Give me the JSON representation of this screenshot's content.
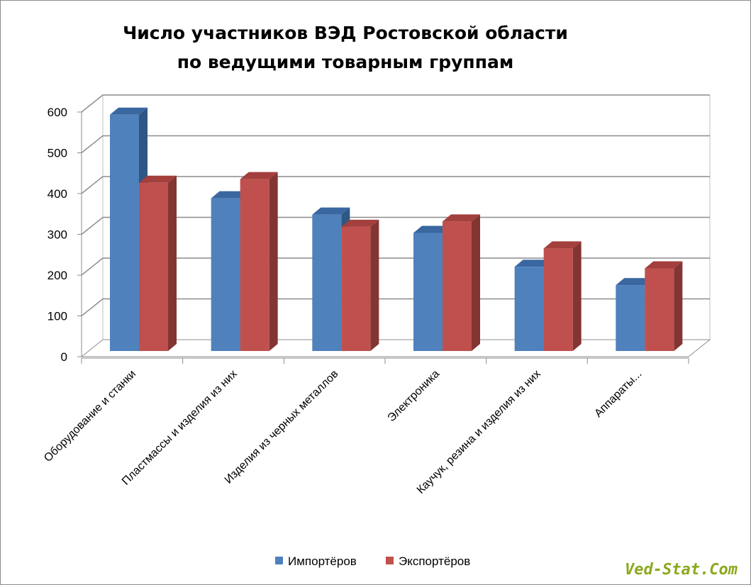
{
  "chart_data": {
    "type": "bar",
    "title_lines": [
      "Число участников  ВЭД Ростовской области",
      "по ведущими товарным группам"
    ],
    "categories": [
      "Оборудование и станки",
      "Пластмассы и изделия из них",
      "Изделия из черных металлов",
      "Электроника",
      "Каучук, резина и изделия из них",
      "Аппараты..."
    ],
    "series": [
      {
        "name": "Импортёров",
        "color": "#4f81bd",
        "side": "#2f5783",
        "top": "#3a67a0",
        "values": [
          590,
          385,
          345,
          300,
          217,
          172
        ]
      },
      {
        "name": "Экспортёров",
        "color": "#c0504d",
        "side": "#833533",
        "top": "#a33f3c",
        "values": [
          423,
          432,
          315,
          328,
          262,
          213
        ]
      }
    ],
    "ylim": [
      0,
      600
    ],
    "yticks": [
      "0",
      "100",
      "200",
      "300",
      "400",
      "500",
      "600"
    ],
    "grid": true,
    "legend": "bottom",
    "watermark": "Ved-Stat.Com"
  }
}
